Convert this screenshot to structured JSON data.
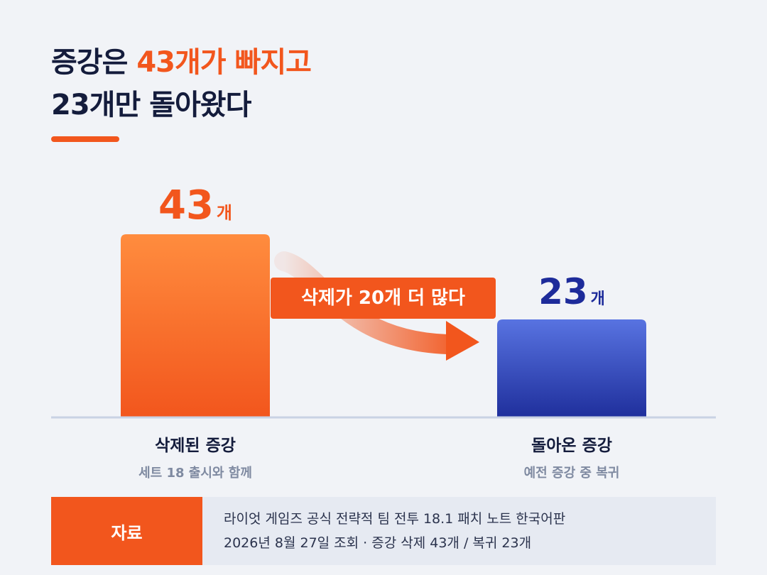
{
  "title": {
    "line1_prefix": "증강은 ",
    "line1_accent": "43개가 빠지고",
    "line2": "23개만 돌아왔다"
  },
  "colors": {
    "accent": "#f2561d",
    "navy": "#141c3c",
    "removed_bar_top": "#ff8c3e",
    "removed_bar_bottom": "#f2561d",
    "returned_bar_top": "#5873e1",
    "returned_bar_bottom": "#1f2f9c",
    "returned_value": "#1d2b9a"
  },
  "chart_data": {
    "type": "bar",
    "categories": [
      "삭제된 증강",
      "돌아온 증강"
    ],
    "values": [
      43,
      23
    ],
    "value_unit": "개",
    "value_labels": [
      "43",
      "23"
    ],
    "subtitles": [
      "세트 18 출시와 함께",
      "예전 증강 중 복귀"
    ],
    "annotation": "삭제가 20개 더 많다",
    "annotation_icon": "arrow-right-icon",
    "ylim": [
      0,
      43
    ],
    "grid": false,
    "legend": "none"
  },
  "source": {
    "tag": "자료",
    "line1": "라이엇 게임즈 공식 전략적 팀 전투 18.1 패치 노트 한국어판",
    "line2": "2026년 8월 27일 조회 · 증강 삭제 43개 / 복귀 23개"
  }
}
